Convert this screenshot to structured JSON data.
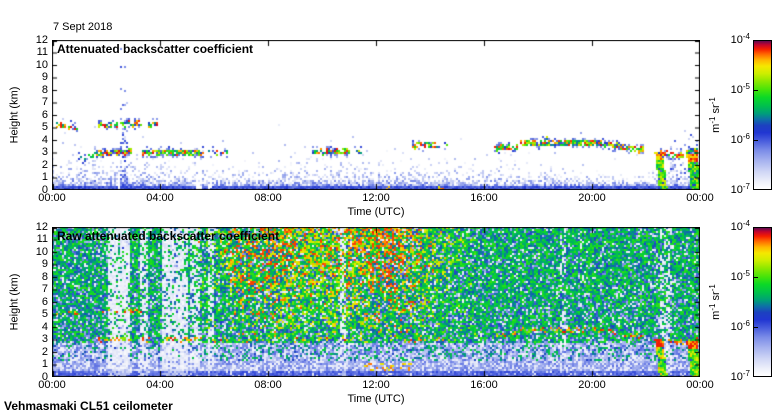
{
  "figure": {
    "date_label": "7 Sept 2018",
    "footer": "Vehmasmaki CL51 ceilometer",
    "background": "#ffffff",
    "axis_color": "#000000"
  },
  "colorbar": {
    "ticks": [
      {
        "base": "10",
        "exp": "-4"
      },
      {
        "base": "10",
        "exp": "-5"
      },
      {
        "base": "10",
        "exp": "-6"
      },
      {
        "base": "10",
        "exp": "-7"
      }
    ],
    "unit_parts": [
      {
        "t": "m"
      },
      {
        "t": "-1",
        "sup": true
      },
      {
        "t": " sr"
      },
      {
        "t": "-1",
        "sup": true
      }
    ],
    "range": [
      "1e-7",
      "1e-4"
    ]
  },
  "colormap": [
    [
      0.0,
      "#ffffff"
    ],
    [
      0.05,
      "#eef0fa"
    ],
    [
      0.12,
      "#ced5f5"
    ],
    [
      0.19,
      "#a7b3ef"
    ],
    [
      0.26,
      "#7c8de8"
    ],
    [
      0.32,
      "#4c60de"
    ],
    [
      0.38,
      "#2136d2"
    ],
    [
      0.43,
      "#1c41c0"
    ],
    [
      0.47,
      "#0e6fa8"
    ],
    [
      0.51,
      "#009e7a"
    ],
    [
      0.56,
      "#00bf4e"
    ],
    [
      0.62,
      "#0cd926"
    ],
    [
      0.67,
      "#45e30a"
    ],
    [
      0.73,
      "#8fe800"
    ],
    [
      0.78,
      "#cdee00"
    ],
    [
      0.83,
      "#f5e800"
    ],
    [
      0.87,
      "#ffb800"
    ],
    [
      0.91,
      "#ff6a00"
    ],
    [
      0.945,
      "#f51d00"
    ],
    [
      0.975,
      "#c3042e"
    ],
    [
      1.0,
      "#5e0a50"
    ]
  ],
  "chart_data": [
    {
      "type": "heatmap",
      "title": "Attenuated backscatter coefficient",
      "xlabel": "Time (UTC)",
      "ylabel": "Height (km)",
      "xlim_hours": [
        0,
        24
      ],
      "ylim_km": [
        0,
        12
      ],
      "xticks": [
        "00:00",
        "04:00",
        "08:00",
        "12:00",
        "16:00",
        "20:00",
        "00:00"
      ],
      "yticks": [
        12,
        11,
        10,
        9,
        8,
        7,
        6,
        5,
        4,
        3,
        2,
        1,
        0
      ],
      "colorbar_range": [
        "1e-7",
        "1e-4"
      ],
      "boundary_layer_top_km": [
        [
          0,
          1.8
        ],
        [
          1,
          1.7
        ],
        [
          2,
          1.6
        ],
        [
          2.7,
          2.0
        ],
        [
          3.2,
          1.7
        ],
        [
          4,
          1.55
        ],
        [
          5,
          1.5
        ],
        [
          6,
          1.35
        ],
        [
          6.8,
          1.0
        ],
        [
          7.6,
          1.1
        ],
        [
          8.3,
          1.5
        ],
        [
          9.5,
          1.55
        ],
        [
          11,
          1.6
        ],
        [
          12,
          1.55
        ],
        [
          13,
          1.4
        ],
        [
          14,
          1.3
        ],
        [
          15,
          1.25
        ],
        [
          16,
          1.2
        ],
        [
          17,
          1.1
        ],
        [
          18,
          1.15
        ],
        [
          19,
          1.05
        ],
        [
          20,
          1.0
        ],
        [
          21,
          0.95
        ],
        [
          22,
          1.0
        ],
        [
          23,
          1.1
        ],
        [
          24,
          1.2
        ]
      ],
      "cloud_layers": [
        {
          "t": [
            0.15,
            0.55
          ],
          "h": [
            5.15,
            5.15
          ],
          "density": 0.75
        },
        {
          "t": [
            0.62,
            0.98
          ],
          "h": [
            5.1,
            5.1
          ],
          "density": 0.6
        },
        {
          "t": [
            1.7,
            2.45
          ],
          "h": [
            5.2,
            5.2
          ],
          "density": 0.7
        },
        {
          "t": [
            2.5,
            3.35
          ],
          "h": [
            5.25,
            5.3
          ],
          "density": 0.7
        },
        {
          "t": [
            3.55,
            3.95
          ],
          "h": [
            5.3,
            5.3
          ],
          "density": 0.45
        },
        {
          "t": [
            1.0,
            1.6
          ],
          "h": [
            2.5,
            2.95
          ],
          "density": 0.55
        },
        {
          "t": [
            1.6,
            2.95
          ],
          "h": [
            2.95,
            3.05
          ],
          "density": 0.9
        },
        {
          "t": [
            3.35,
            5.65
          ],
          "h": [
            3.0,
            3.0
          ],
          "density": 0.92
        },
        {
          "t": [
            5.8,
            6.55
          ],
          "h": [
            3.0,
            3.0
          ],
          "density": 0.5
        },
        {
          "t": [
            9.6,
            11.05
          ],
          "h": [
            3.05,
            3.1
          ],
          "density": 0.8
        },
        {
          "t": [
            11.15,
            11.45
          ],
          "h": [
            3.1,
            3.1
          ],
          "density": 0.3
        },
        {
          "t": [
            13.35,
            14.35
          ],
          "h": [
            3.55,
            3.6
          ],
          "density": 0.55
        },
        {
          "t": [
            14.5,
            14.85
          ],
          "h": [
            3.6,
            3.6
          ],
          "density": 0.3
        },
        {
          "t": [
            16.35,
            17.25
          ],
          "h": [
            3.35,
            3.45
          ],
          "density": 0.8
        },
        {
          "t": [
            17.3,
            20.4
          ],
          "h": [
            3.75,
            3.75
          ],
          "density": 0.9
        },
        {
          "t": [
            20.4,
            21.95
          ],
          "h": [
            3.7,
            3.15
          ],
          "density": 0.85
        },
        {
          "t": [
            22.45,
            23.4
          ],
          "h": [
            2.95,
            2.75
          ],
          "density": 0.65
        },
        {
          "t": [
            23.45,
            23.95
          ],
          "h": [
            3.0,
            3.25
          ],
          "density": 0.8
        },
        {
          "t": [
            18.05,
            18.35
          ],
          "h": [
            4.3,
            4.3
          ],
          "density": 0.3
        },
        {
          "t": [
            19.35,
            19.6
          ],
          "h": [
            4.2,
            4.2
          ],
          "density": 0.25
        }
      ],
      "signal_gaps_h": [
        [
          2.48,
          2.6
        ],
        [
          5.35,
          5.55
        ],
        [
          5.8,
          5.92
        ]
      ],
      "plume": {
        "t": [
          2.5,
          2.85
        ],
        "top_km": 7
      },
      "evening_speckle": {
        "t": [
          22.9,
          24
        ],
        "top_km": 5
      },
      "precipitation": [
        {
          "t": [
            22.32,
            22.62
          ],
          "top_km": 3.1
        },
        {
          "t": [
            23.5,
            23.9
          ],
          "top_km": 2.9
        }
      ],
      "surface_dots": [
        [
          12.3,
          12.6
        ],
        [
          14.25,
          14.5
        ]
      ]
    },
    {
      "type": "heatmap",
      "title": "Raw attenuated backscatter coefficient",
      "xlabel": "Time (UTC)",
      "ylabel": "Height (km)",
      "xlim_hours": [
        0,
        24
      ],
      "ylim_km": [
        0,
        12
      ],
      "xticks": [
        "00:00",
        "04:00",
        "08:00",
        "12:00",
        "16:00",
        "20:00",
        "00:00"
      ],
      "yticks": [
        12,
        11,
        10,
        9,
        8,
        7,
        6,
        5,
        4,
        3,
        2,
        1,
        0
      ],
      "colorbar_range": [
        "1e-7",
        "1e-4"
      ],
      "light_stripes": [
        [
          2.1,
          2.9,
          0.75
        ],
        [
          3.25,
          3.55,
          0.55
        ],
        [
          4.05,
          5.0,
          0.7
        ],
        [
          5.08,
          5.45,
          0.5
        ],
        [
          5.8,
          5.98,
          0.5
        ],
        [
          10.68,
          10.88,
          0.45
        ],
        [
          18.85,
          19.0,
          0.3
        ],
        [
          22.55,
          22.95,
          0.3
        ]
      ],
      "daytime_enhancement": {
        "t": [
          4.8,
          16.2
        ],
        "peaks": [
          7.5,
          12.6
        ]
      },
      "cloud_layers": [
        {
          "t": [
            0.15,
            0.55
          ],
          "h": [
            5.15,
            5.15
          ],
          "density": 0.75
        },
        {
          "t": [
            0.62,
            0.98
          ],
          "h": [
            5.1,
            5.1
          ],
          "density": 0.6
        },
        {
          "t": [
            1.7,
            2.45
          ],
          "h": [
            5.2,
            5.2
          ],
          "density": 0.7
        },
        {
          "t": [
            2.5,
            3.35
          ],
          "h": [
            5.25,
            5.3
          ],
          "density": 0.7
        },
        {
          "t": [
            1.6,
            2.95
          ],
          "h": [
            2.95,
            3.05
          ],
          "density": 0.9
        },
        {
          "t": [
            3.35,
            5.65
          ],
          "h": [
            3.0,
            3.0
          ],
          "density": 0.92
        },
        {
          "t": [
            5.8,
            6.55
          ],
          "h": [
            3.0,
            3.0
          ],
          "density": 0.5
        },
        {
          "t": [
            8.7,
            9.3
          ],
          "h": [
            2.9,
            3.0
          ],
          "density": 0.4
        },
        {
          "t": [
            9.6,
            11.05
          ],
          "h": [
            3.05,
            3.1
          ],
          "density": 0.5
        },
        {
          "t": [
            13.2,
            14.5
          ],
          "h": [
            2.9,
            3.1
          ],
          "density": 0.45
        },
        {
          "t": [
            16.35,
            17.25
          ],
          "h": [
            3.35,
            3.45
          ],
          "density": 0.6
        },
        {
          "t": [
            17.3,
            20.4
          ],
          "h": [
            3.75,
            3.75
          ],
          "density": 0.75
        },
        {
          "t": [
            20.4,
            21.95
          ],
          "h": [
            3.7,
            3.15
          ],
          "density": 0.7
        },
        {
          "t": [
            22.45,
            23.4
          ],
          "h": [
            2.95,
            2.75
          ],
          "density": 0.6
        },
        {
          "t": [
            23.45,
            23.95
          ],
          "h": [
            3.0,
            3.25
          ],
          "density": 0.7
        }
      ],
      "precipitation": [
        {
          "t": [
            22.32,
            22.62
          ],
          "top_km": 3.1
        },
        {
          "t": [
            23.5,
            23.9
          ],
          "top_km": 2.9
        }
      ],
      "surface_band": {
        "t": [
          11.5,
          13.4
        ],
        "h": 0.75
      }
    }
  ]
}
